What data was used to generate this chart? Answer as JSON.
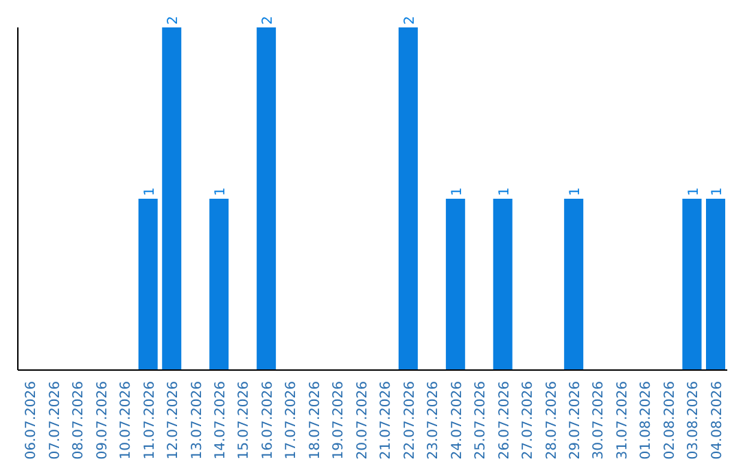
{
  "chart_data": {
    "type": "bar",
    "categories": [
      "06.07.2026",
      "07.07.2026",
      "08.07.2026",
      "09.07.2026",
      "10.07.2026",
      "11.07.2026",
      "12.07.2026",
      "13.07.2026",
      "14.07.2026",
      "15.07.2026",
      "16.07.2026",
      "17.07.2026",
      "18.07.2026",
      "19.07.2026",
      "20.07.2026",
      "21.07.2026",
      "22.07.2026",
      "23.07.2026",
      "24.07.2026",
      "25.07.2026",
      "26.07.2026",
      "27.07.2026",
      "28.07.2026",
      "29.07.2026",
      "30.07.2026",
      "31.07.2026",
      "01.08.2026",
      "02.08.2026",
      "03.08.2026",
      "04.08.2026"
    ],
    "values": [
      0,
      0,
      0,
      0,
      0,
      1,
      2,
      0,
      1,
      0,
      2,
      0,
      0,
      0,
      0,
      0,
      2,
      0,
      1,
      0,
      1,
      0,
      0,
      1,
      0,
      0,
      0,
      0,
      1,
      1
    ],
    "value_labels": [
      null,
      null,
      null,
      null,
      null,
      "1",
      "2",
      null,
      "1",
      null,
      "2",
      null,
      null,
      null,
      null,
      null,
      "2",
      null,
      "1",
      null,
      "1",
      null,
      null,
      "1",
      null,
      null,
      null,
      null,
      "1",
      "1"
    ],
    "color": "#0a7fe0",
    "grid": false,
    "legend": false,
    "tick_labels": "x"
  }
}
